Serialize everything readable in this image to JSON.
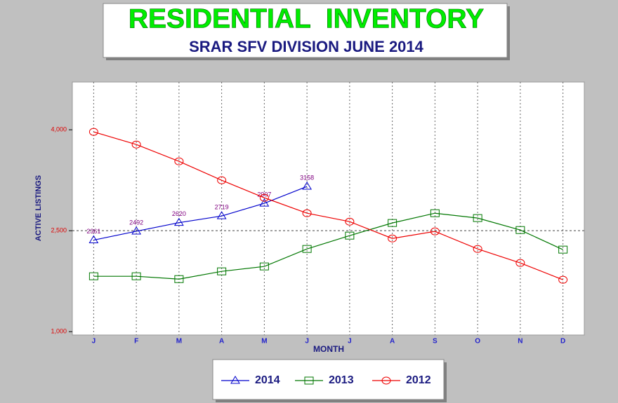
{
  "chart_data": {
    "type": "line",
    "title": "RESIDENTIAL  INVENTORY",
    "subtitle": "SRAR SFV DIVISION JUNE 2014",
    "x_label": "MONTH",
    "y_label": "ACTIVE LISTINGS",
    "categories": [
      "J",
      "F",
      "M",
      "A",
      "M",
      "J",
      "J",
      "A",
      "S",
      "O",
      "N",
      "D"
    ],
    "series": [
      {
        "name": "2014",
        "color": "#0000cc",
        "marker": "triangle",
        "data_labels": true,
        "values": [
          2361,
          2492,
          2620,
          2719,
          2907,
          3158,
          null,
          null,
          null,
          null,
          null,
          null
        ]
      },
      {
        "name": "2013",
        "color": "#007700",
        "marker": "square",
        "values": [
          1823,
          1823,
          1781,
          1896,
          1969,
          2229,
          2427,
          2615,
          2760,
          2688,
          2510,
          2219
        ]
      },
      {
        "name": "2012",
        "color": "#ee0000",
        "marker": "circle",
        "values": [
          3969,
          3781,
          3531,
          3250,
          2990,
          2760,
          2635,
          2385,
          2490,
          2229,
          2021,
          1771
        ]
      }
    ],
    "ylim": [
      950,
      4710
    ],
    "yticks": [
      {
        "value": 1000,
        "label": "1,000"
      },
      {
        "value": 2500,
        "label": "2,500"
      },
      {
        "value": 4000,
        "label": "4,000"
      }
    ],
    "hline": 2500,
    "grid": "vertical",
    "legend": "bottom"
  }
}
